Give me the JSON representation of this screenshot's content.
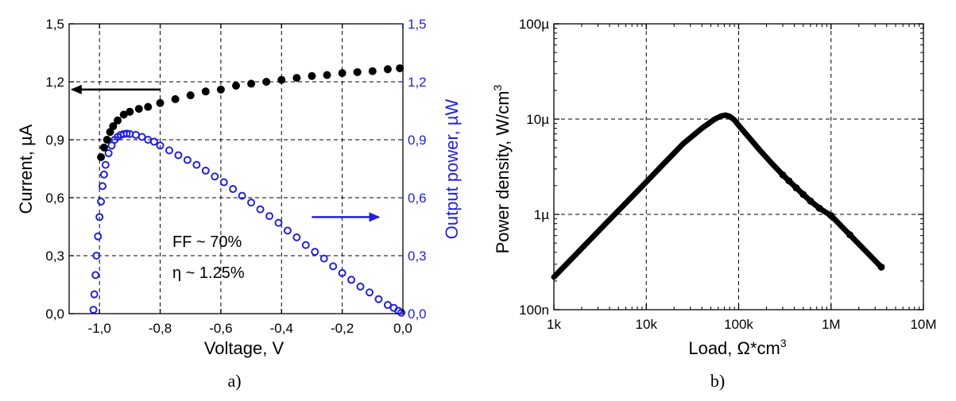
{
  "colors": {
    "series_current": "#000000",
    "series_power": "#2222dd",
    "axis_right": "#2222dd",
    "grid": "#000000"
  },
  "chart_data": [
    {
      "type": "scatter",
      "panel_label": "a)",
      "annotation_lines": [
        "FF ~ 70%",
        "η ~ 1.25%"
      ],
      "xlabel": "Voltage, V",
      "ylabel_left": "Current, µA",
      "ylabel_right": "Output power, µW",
      "xlim": [
        -1.1,
        0.0
      ],
      "ylim_left": [
        0.0,
        1.5
      ],
      "ylim_right": [
        0.0,
        1.5
      ],
      "xticks": [
        -1.0,
        -0.8,
        -0.6,
        -0.4,
        -0.2,
        0.0
      ],
      "xtick_labels": [
        "-1,0",
        "-0,8",
        "-0,6",
        "-0,4",
        "-0,2",
        "0,0"
      ],
      "yticks": [
        0.0,
        0.3,
        0.6,
        0.9,
        1.2,
        1.5
      ],
      "ytick_labels": [
        "0,0",
        "0,3",
        "0,6",
        "0,9",
        "1,2",
        "1,5"
      ],
      "grid": true,
      "arrow_current": {
        "from": [
          -0.8,
          1.16
        ],
        "to": [
          -1.09,
          1.16
        ]
      },
      "arrow_power": {
        "from": [
          -0.3,
          0.5
        ],
        "to": [
          -0.08,
          0.5
        ]
      },
      "series": [
        {
          "name": "Current",
          "axis": "left",
          "x": [
            -0.995,
            -0.985,
            -0.975,
            -0.965,
            -0.955,
            -0.94,
            -0.92,
            -0.9,
            -0.87,
            -0.84,
            -0.8,
            -0.75,
            -0.7,
            -0.65,
            -0.6,
            -0.55,
            -0.5,
            -0.45,
            -0.4,
            -0.35,
            -0.3,
            -0.25,
            -0.2,
            -0.15,
            -0.1,
            -0.05,
            -0.01
          ],
          "y": [
            0.81,
            0.86,
            0.9,
            0.94,
            0.97,
            1.0,
            1.03,
            1.045,
            1.06,
            1.07,
            1.09,
            1.11,
            1.13,
            1.15,
            1.16,
            1.18,
            1.19,
            1.2,
            1.21,
            1.22,
            1.23,
            1.235,
            1.245,
            1.25,
            1.255,
            1.265,
            1.27
          ]
        },
        {
          "name": "Output power",
          "axis": "right",
          "x": [
            -1.02,
            -1.017,
            -1.013,
            -1.01,
            -1.005,
            -1.0,
            -0.995,
            -0.99,
            -0.985,
            -0.98,
            -0.97,
            -0.96,
            -0.95,
            -0.94,
            -0.93,
            -0.92,
            -0.91,
            -0.9,
            -0.88,
            -0.86,
            -0.84,
            -0.82,
            -0.8,
            -0.77,
            -0.74,
            -0.71,
            -0.68,
            -0.65,
            -0.62,
            -0.59,
            -0.56,
            -0.53,
            -0.5,
            -0.47,
            -0.44,
            -0.41,
            -0.38,
            -0.35,
            -0.32,
            -0.29,
            -0.26,
            -0.23,
            -0.2,
            -0.17,
            -0.14,
            -0.11,
            -0.08,
            -0.05,
            -0.03,
            -0.015,
            -0.005
          ],
          "y": [
            0.02,
            0.1,
            0.2,
            0.3,
            0.4,
            0.5,
            0.58,
            0.66,
            0.72,
            0.77,
            0.83,
            0.87,
            0.9,
            0.915,
            0.925,
            0.93,
            0.932,
            0.93,
            0.925,
            0.915,
            0.9,
            0.89,
            0.87,
            0.845,
            0.82,
            0.795,
            0.77,
            0.74,
            0.71,
            0.68,
            0.645,
            0.61,
            0.575,
            0.54,
            0.505,
            0.47,
            0.43,
            0.395,
            0.355,
            0.32,
            0.285,
            0.245,
            0.21,
            0.175,
            0.14,
            0.11,
            0.075,
            0.045,
            0.03,
            0.015,
            0.005
          ]
        }
      ]
    },
    {
      "type": "line",
      "panel_label": "b)",
      "xlabel": "Load, Ω*cm",
      "xlabel_sup": "3",
      "ylabel": "Power density, W/cm",
      "ylabel_sup": "3",
      "xscale": "log",
      "yscale": "log",
      "xlim": [
        1000,
        10000000
      ],
      "ylim": [
        1e-07,
        0.0001
      ],
      "xticks": [
        1000,
        10000,
        100000,
        1000000,
        10000000
      ],
      "xtick_labels": [
        "1k",
        "10k",
        "100k",
        "1M",
        "10M"
      ],
      "yticks": [
        1e-07,
        1e-06,
        1e-05,
        0.0001
      ],
      "ytick_labels": [
        "100n",
        "1µ",
        "10µ",
        "100µ"
      ],
      "grid": true,
      "series": [
        {
          "name": "Power density",
          "x": [
            1000,
            2000,
            4000,
            8000,
            15000,
            25000,
            40000,
            55000,
            65000,
            72000,
            80000,
            90000,
            100000,
            130000,
            170000,
            230000,
            300000,
            350000,
            420000,
            500000,
            600000,
            750000,
            1000000,
            1600000,
            3500000
          ],
          "y": [
            2.2e-07,
            4.4e-07,
            8.8e-07,
            1.75e-06,
            3.3e-06,
            5.5e-06,
            8e-06,
            1e-05,
            1.08e-05,
            1.1e-05,
            1.07e-05,
            9.8e-06,
            8.6e-06,
            6.4e-06,
            4.7e-06,
            3.4e-06,
            2.6e-06,
            2.25e-06,
            1.9e-06,
            1.62e-06,
            1.38e-06,
            1.16e-06,
            9.7e-07,
            6.1e-07,
            2.8e-07
          ]
        }
      ]
    }
  ]
}
